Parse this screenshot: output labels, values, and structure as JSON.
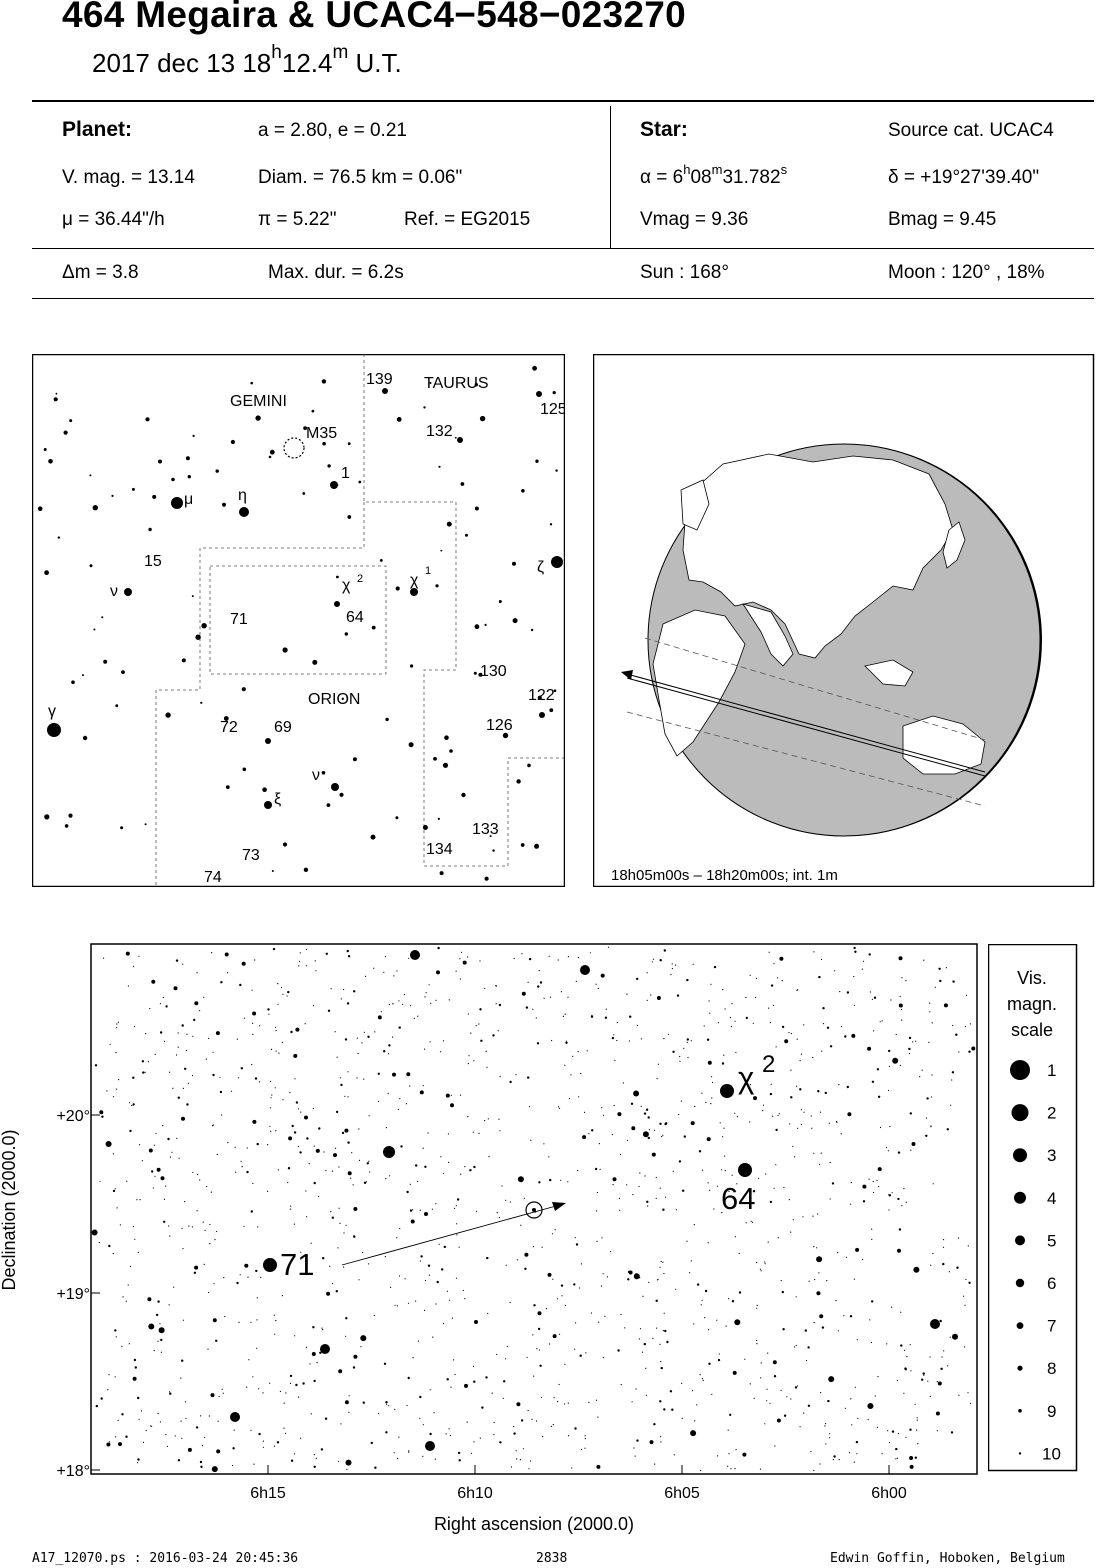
{
  "title": "464 Megaira  &  UCAC4−548−023270",
  "subtitle": {
    "date": "2017 dec 13  18",
    "h": "h",
    "mid": "12.4",
    "m": "m",
    "tail": " U.T."
  },
  "info": {
    "planet_label": "Planet:",
    "orbit": "a = 2.80, e = 0.21",
    "vmag": "V. mag. = 13.14",
    "diam": "Diam. = 76.5 km = 0.06\"",
    "mu": "μ =  36.44\"/h",
    "pi": "π =  5.22\"",
    "ref": "Ref. = EG2015",
    "star_label": "Star:",
    "source": "Source cat.  UCAC4",
    "alpha_prefix": "α =  6",
    "alpha_h": "h",
    "alpha_mid": "08",
    "alpha_m": "m",
    "alpha_sec": "31.782",
    "alpha_s": "s",
    "delta": "δ = +19°27'39.40\"",
    "star_vmag": "Vmag =  9.36",
    "star_bmag": "Bmag =  9.45",
    "dm": "Δm = 3.8",
    "maxdur": "Max. dur. = 6.2s",
    "sun": "Sun : 168°",
    "moon": "Moon : 120° , 18%"
  },
  "finder": {
    "constellations": [
      "GEMINI",
      "TAURUS",
      "ORION"
    ],
    "labels": [
      "139",
      "125",
      "132",
      "M35",
      "1",
      "μ",
      "η",
      "15",
      "ν",
      "χ",
      "2",
      "χ",
      "1",
      "ζ",
      "71",
      "64",
      "130",
      "122",
      "γ",
      "72",
      "69",
      "126",
      "ν",
      "ξ",
      "133",
      "134",
      "73",
      "74"
    ]
  },
  "globe": {
    "caption": "18h05m00s – 18h20m00s; int.  1m"
  },
  "starchart": {
    "ylabel": "Declination (2000.0)",
    "xlabel": "Right ascension (2000.0)",
    "yticks": [
      "+20°",
      "+19°",
      "+18°"
    ],
    "xticks": [
      "6h15",
      "6h10",
      "6h05",
      "6h00"
    ],
    "star_labels": [
      "71",
      "χ",
      "2",
      "64"
    ]
  },
  "scale": {
    "title": [
      "Vis.",
      "magn.",
      "scale"
    ],
    "values": [
      "1",
      "2",
      "3",
      "4",
      "5",
      "6",
      "7",
      "8",
      "9",
      "10"
    ]
  },
  "footer": {
    "left": "A17_12070.ps : 2016-03-24 20:45:36",
    "center": "2838",
    "right": "Edwin Goffin, Hoboken, Belgium"
  }
}
